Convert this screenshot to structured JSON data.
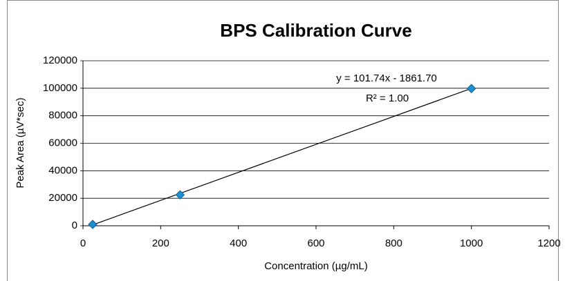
{
  "chart_data": {
    "type": "scatter",
    "title": "BPS Calibration Curve",
    "x_label": "Concentration (µg/mL)",
    "y_label": "Peak Area (µV*sec)",
    "series": [
      {
        "name": "BPS",
        "color": "#1f8fd0",
        "x": [
          25,
          250,
          1000
        ],
        "values": [
          1000,
          22500,
          99800
        ]
      }
    ],
    "trendline": {
      "slope": 101.74,
      "intercept": -1861.7,
      "equation_label": "y = 101.74x - 1861.70",
      "r2_label": "R² = 1.00",
      "color": "#000000"
    },
    "xlim": [
      0,
      1200
    ],
    "xticks": [
      0,
      200,
      400,
      600,
      800,
      1000,
      1200
    ],
    "ylim": [
      0,
      120000
    ],
    "yticks": [
      0,
      20000,
      40000,
      60000,
      80000,
      100000,
      120000
    ],
    "grid": true
  }
}
